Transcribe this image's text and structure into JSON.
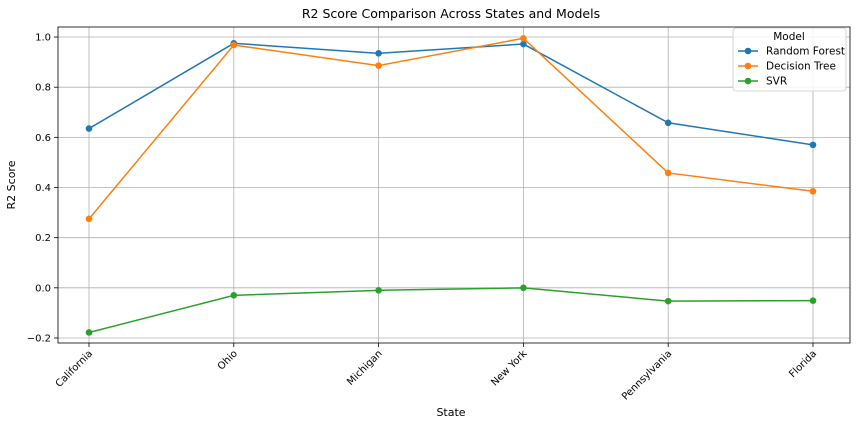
{
  "chart_data": {
    "type": "line",
    "title": "R2 Score Comparison Across States and Models",
    "xlabel": "State",
    "ylabel": "R2 Score",
    "categories": [
      "California",
      "Ohio",
      "Michigan",
      "New York",
      "Pennsylvania",
      "Florida"
    ],
    "ylim": [
      -0.22,
      1.04
    ],
    "yticks": [
      -0.2,
      0.0,
      0.2,
      0.4,
      0.6,
      0.8,
      1.0
    ],
    "ytick_labels": [
      "−0.2",
      "0.0",
      "0.2",
      "0.4",
      "0.6",
      "0.8",
      "1.0"
    ],
    "grid": true,
    "legend_title": "Model",
    "legend_position": "top-right",
    "series": [
      {
        "name": "Random Forest",
        "color": "#1f77b4",
        "values": [
          0.635,
          0.975,
          0.935,
          0.972,
          0.658,
          0.57
        ]
      },
      {
        "name": "Decision Tree",
        "color": "#ff7f0e",
        "values": [
          0.275,
          0.968,
          0.886,
          0.995,
          0.458,
          0.385
        ]
      },
      {
        "name": "SVR",
        "color": "#2ca02c",
        "values": [
          -0.178,
          -0.03,
          -0.01,
          0.0,
          -0.053,
          -0.051
        ]
      }
    ]
  }
}
